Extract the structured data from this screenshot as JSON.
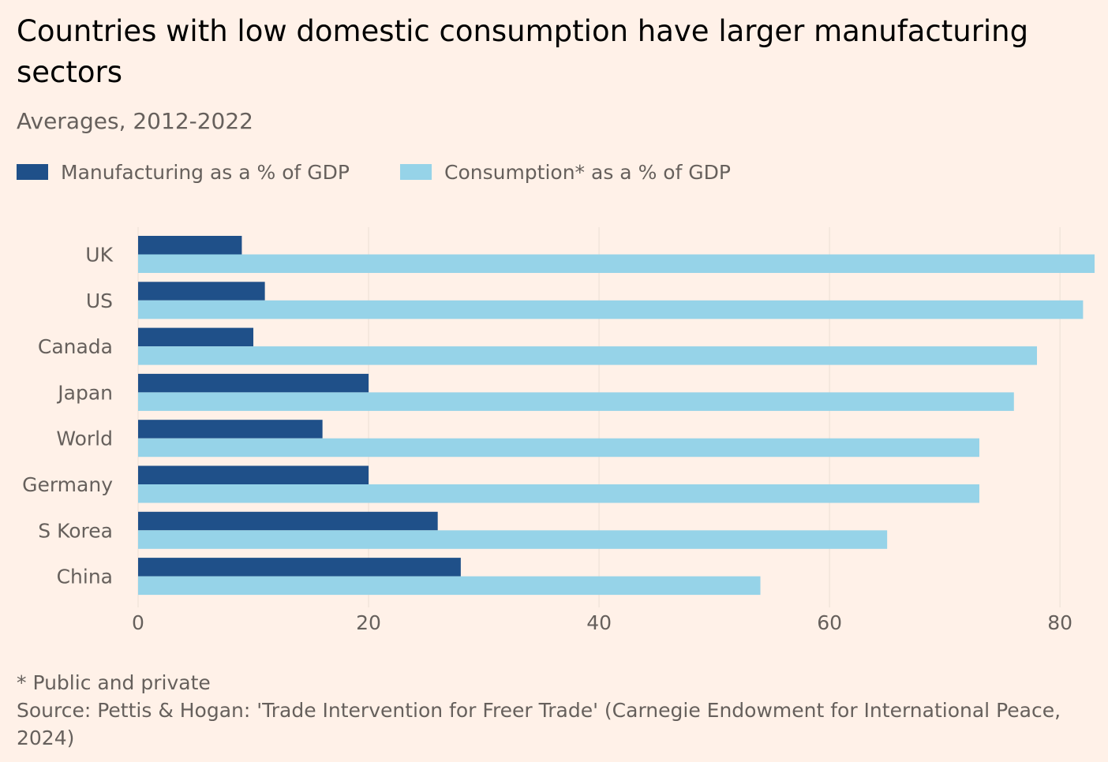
{
  "header": {
    "title": "Countries with low domestic consumption have larger manufacturing sectors",
    "subtitle": "Averages, 2012-2022"
  },
  "legend": [
    {
      "label": "Manufacturing as a % of GDP",
      "color": "#1f5089"
    },
    {
      "label": "Consumption* as a % of GDP",
      "color": "#96d3e8"
    }
  ],
  "footer": {
    "footnote": "* Public and private",
    "source": "Source: Pettis & Hogan: 'Trade Intervention for Freer Trade' (Carnegie Endowment for International Peace, 2024)"
  },
  "chart_data": {
    "type": "bar",
    "orientation": "horizontal",
    "title": "Countries with low domestic consumption have larger manufacturing sectors",
    "subtitle": "Averages, 2012-2022",
    "categories": [
      "UK",
      "US",
      "Canada",
      "Japan",
      "World",
      "Germany",
      "S Korea",
      "China"
    ],
    "series": [
      {
        "name": "Manufacturing as a % of GDP",
        "color": "#1f5089",
        "values": [
          9,
          11,
          10,
          20,
          16,
          20,
          26,
          28
        ]
      },
      {
        "name": "Consumption* as a % of GDP",
        "color": "#96d3e8",
        "values": [
          83,
          82,
          78,
          76,
          73,
          73,
          65,
          54
        ]
      }
    ],
    "xticks": [
      0,
      20,
      40,
      60,
      80
    ],
    "xlim": [
      0,
      83
    ],
    "xlabel": "",
    "ylabel": "",
    "grid": "vertical",
    "legend_position": "top-left",
    "grid_color": "#f2e5db"
  }
}
